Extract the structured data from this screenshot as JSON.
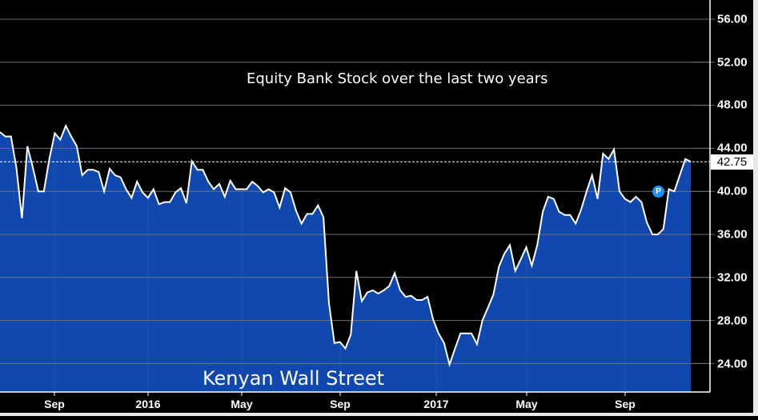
{
  "chart_data": {
    "type": "area",
    "title": "Equity Bank Stock over the last two years",
    "watermark": "Kenyan Wall Street",
    "xlabel": "",
    "ylabel": "",
    "ylim": [
      21.5,
      57.7
    ],
    "y_ticks": [
      "56.00",
      "52.00",
      "48.00",
      "44.00",
      "40.00",
      "36.00",
      "32.00",
      "28.00",
      "24.00"
    ],
    "x_ticks": [
      {
        "label": "Sep",
        "bold": false
      },
      {
        "label": "2016",
        "bold": true
      },
      {
        "label": "May",
        "bold": false
      },
      {
        "label": "Sep",
        "bold": false
      },
      {
        "label": "2017",
        "bold": true
      },
      {
        "label": "May",
        "bold": false
      },
      {
        "label": "Sep",
        "bold": false
      }
    ],
    "last_value": "42.75",
    "marker_label": "P",
    "grid": true,
    "colors": {
      "fill": "#1048b0",
      "line": "#ffffff",
      "background": "#000000",
      "grid": "#6e6e6e",
      "marker": "#1e90ff"
    },
    "series": [
      {
        "name": "Equity Bank Stock",
        "values": [
          45.5,
          45.1,
          45.1,
          42.2,
          37.5,
          44.2,
          42.2,
          40.0,
          40.0,
          43.0,
          45.4,
          44.8,
          46.1,
          45.1,
          44.2,
          41.5,
          42.0,
          42.0,
          41.8,
          40.0,
          42.1,
          41.5,
          41.3,
          40.2,
          39.4,
          40.9,
          39.9,
          39.4,
          40.2,
          38.8,
          39.0,
          39.0,
          39.9,
          40.3,
          38.9,
          42.8,
          42.0,
          42.0,
          40.9,
          40.2,
          40.7,
          39.5,
          41.0,
          40.2,
          40.2,
          40.2,
          40.9,
          40.5,
          39.9,
          40.2,
          39.9,
          38.5,
          40.3,
          39.9,
          38.2,
          37.0,
          37.9,
          37.9,
          38.7,
          37.6,
          29.6,
          25.9,
          26.0,
          25.4,
          26.7,
          32.6,
          29.8,
          30.6,
          30.8,
          30.5,
          30.8,
          31.2,
          32.4,
          30.8,
          30.2,
          30.3,
          29.9,
          29.9,
          30.2,
          28.1,
          26.8,
          25.9,
          23.9,
          25.4,
          26.8,
          26.8,
          26.8,
          25.8,
          28.0,
          29.2,
          30.4,
          33.0,
          34.2,
          35.0,
          32.6,
          33.7,
          34.8,
          33.1,
          35.0,
          38.1,
          39.5,
          39.3,
          38.1,
          37.8,
          37.8,
          37.0,
          38.3,
          40.0,
          41.5,
          39.3,
          43.5,
          43.0,
          43.9,
          40.0,
          39.3,
          39.0,
          39.5,
          39.0,
          37.1,
          36.0,
          36.0,
          36.5,
          40.2,
          40.0,
          41.5,
          43.0,
          42.75
        ]
      }
    ]
  },
  "axis": {
    "y_labels": [
      "56.00",
      "52.00",
      "48.00",
      "44.00",
      "40.00",
      "36.00",
      "32.00",
      "28.00",
      "24.00"
    ],
    "x_labels": [
      "Sep",
      "2016",
      "May",
      "Sep",
      "2017",
      "May",
      "Sep"
    ],
    "last_price": "42.75"
  },
  "labels": {
    "title": "Equity Bank Stock over the last two years",
    "watermark": "Kenyan Wall Street",
    "marker": "P"
  }
}
